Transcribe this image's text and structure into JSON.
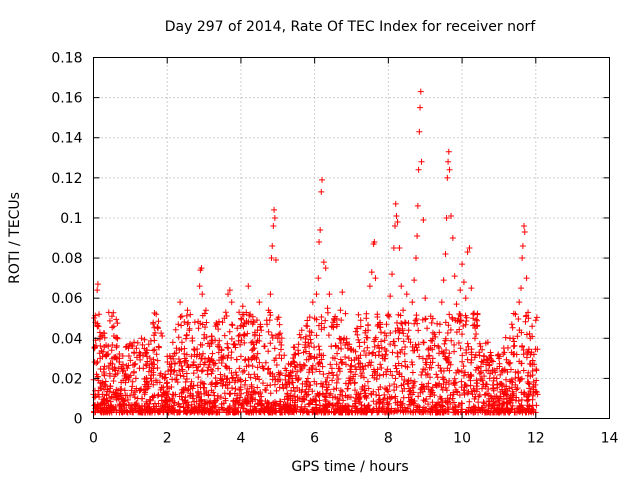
{
  "chart_data": {
    "type": "scatter",
    "title": "Day 297 of 2014, Rate Of TEC Index for receiver norf",
    "xlabel": "GPS time / hours",
    "ylabel": "ROTI / TECUs",
    "xlim": [
      0,
      14
    ],
    "ylim": [
      0,
      0.18
    ],
    "x_ticks": [
      "0",
      "2",
      "4",
      "6",
      "8",
      "10",
      "12",
      "14"
    ],
    "y_ticks": [
      "0",
      "0.02",
      "0.04",
      "0.06",
      "0.08",
      "0.1",
      "0.12",
      "0.14",
      "0.16",
      "0.18"
    ],
    "grid": true,
    "marker": "+",
    "marker_color": "#ff0000",
    "series": [
      {
        "name": "ROTI",
        "color": "#ff0000",
        "points": [
          [
            0.0,
            0.012
          ],
          [
            0.03,
            0.035
          ],
          [
            0.05,
            0.048
          ],
          [
            0.08,
            0.022
          ],
          [
            0.1,
            0.064
          ],
          [
            0.12,
            0.067
          ],
          [
            0.15,
            0.052
          ],
          [
            0.18,
            0.03
          ],
          [
            0.2,
            0.041
          ],
          [
            0.25,
            0.018
          ],
          [
            0.3,
            0.026
          ],
          [
            0.35,
            0.012
          ],
          [
            0.4,
            0.036
          ],
          [
            0.45,
            0.015
          ],
          [
            0.5,
            0.051
          ],
          [
            0.55,
            0.046
          ],
          [
            0.6,
            0.022
          ],
          [
            0.65,
            0.011
          ],
          [
            0.7,
            0.03
          ],
          [
            0.75,
            0.018
          ],
          [
            0.8,
            0.027
          ],
          [
            0.85,
            0.014
          ],
          [
            0.9,
            0.021
          ],
          [
            0.95,
            0.035
          ],
          [
            1.0,
            0.029
          ],
          [
            1.05,
            0.016
          ],
          [
            1.1,
            0.038
          ],
          [
            1.15,
            0.02
          ],
          [
            1.2,
            0.01
          ],
          [
            1.25,
            0.033
          ],
          [
            1.3,
            0.04
          ],
          [
            1.35,
            0.025
          ],
          [
            1.4,
            0.013
          ],
          [
            1.45,
            0.031
          ],
          [
            1.5,
            0.037
          ],
          [
            1.55,
            0.02
          ],
          [
            1.6,
            0.011
          ],
          [
            1.65,
            0.027
          ],
          [
            1.7,
            0.052
          ],
          [
            1.75,
            0.045
          ],
          [
            1.8,
            0.018
          ],
          [
            1.85,
            0.009
          ],
          [
            1.9,
            0.013
          ],
          [
            1.95,
            0.008
          ],
          [
            2.0,
            0.018
          ],
          [
            2.05,
            0.015
          ],
          [
            2.1,
            0.03
          ],
          [
            2.15,
            0.012
          ],
          [
            2.2,
            0.024
          ],
          [
            2.25,
            0.035
          ],
          [
            2.3,
            0.047
          ],
          [
            2.35,
            0.058
          ],
          [
            2.4,
            0.038
          ],
          [
            2.45,
            0.021
          ],
          [
            2.5,
            0.029
          ],
          [
            2.55,
            0.054
          ],
          [
            2.6,
            0.044
          ],
          [
            2.65,
            0.016
          ],
          [
            2.7,
            0.027
          ],
          [
            2.75,
            0.048
          ],
          [
            2.8,
            0.031
          ],
          [
            2.85,
            0.045
          ],
          [
            2.88,
            0.066
          ],
          [
            2.9,
            0.074
          ],
          [
            2.93,
            0.075
          ],
          [
            2.95,
            0.062
          ],
          [
            3.0,
            0.04
          ],
          [
            3.05,
            0.054
          ],
          [
            3.1,
            0.022
          ],
          [
            3.15,
            0.036
          ],
          [
            3.2,
            0.014
          ],
          [
            3.25,
            0.028
          ],
          [
            3.3,
            0.039
          ],
          [
            3.35,
            0.047
          ],
          [
            3.4,
            0.033
          ],
          [
            3.45,
            0.02
          ],
          [
            3.5,
            0.048
          ],
          [
            3.55,
            0.05
          ],
          [
            3.6,
            0.026
          ],
          [
            3.65,
            0.062
          ],
          [
            3.7,
            0.064
          ],
          [
            3.75,
            0.058
          ],
          [
            3.8,
            0.037
          ],
          [
            3.85,
            0.019
          ],
          [
            3.9,
            0.045
          ],
          [
            3.95,
            0.053
          ],
          [
            4.0,
            0.031
          ],
          [
            4.05,
            0.056
          ],
          [
            4.1,
            0.042
          ],
          [
            4.15,
            0.026
          ],
          [
            4.2,
            0.066
          ],
          [
            4.25,
            0.052
          ],
          [
            4.3,
            0.034
          ],
          [
            4.35,
            0.048
          ],
          [
            4.4,
            0.02
          ],
          [
            4.45,
            0.039
          ],
          [
            4.5,
            0.058
          ],
          [
            4.55,
            0.044
          ],
          [
            4.6,
            0.025
          ],
          [
            4.65,
            0.036
          ],
          [
            4.7,
            0.049
          ],
          [
            4.75,
            0.054
          ],
          [
            4.8,
            0.062
          ],
          [
            4.83,
            0.08
          ],
          [
            4.85,
            0.086
          ],
          [
            4.88,
            0.096
          ],
          [
            4.9,
            0.104
          ],
          [
            4.92,
            0.1
          ],
          [
            4.95,
            0.079
          ],
          [
            5.0,
            0.04
          ],
          [
            5.05,
            0.022
          ],
          [
            5.1,
            0.03
          ],
          [
            5.15,
            0.015
          ],
          [
            5.2,
            0.025
          ],
          [
            5.25,
            0.011
          ],
          [
            5.3,
            0.018
          ],
          [
            5.35,
            0.023
          ],
          [
            5.4,
            0.009
          ],
          [
            5.45,
            0.028
          ],
          [
            5.5,
            0.02
          ],
          [
            5.55,
            0.034
          ],
          [
            5.6,
            0.027
          ],
          [
            5.65,
            0.044
          ],
          [
            5.7,
            0.033
          ],
          [
            5.75,
            0.038
          ],
          [
            5.8,
            0.046
          ],
          [
            5.85,
            0.036
          ],
          [
            5.9,
            0.031
          ],
          [
            5.95,
            0.058
          ],
          [
            6.0,
            0.05
          ],
          [
            6.05,
            0.062
          ],
          [
            6.1,
            0.07
          ],
          [
            6.12,
            0.088
          ],
          [
            6.15,
            0.094
          ],
          [
            6.18,
            0.113
          ],
          [
            6.2,
            0.119
          ],
          [
            6.25,
            0.078
          ],
          [
            6.3,
            0.075
          ],
          [
            6.35,
            0.055
          ],
          [
            6.4,
            0.062
          ],
          [
            6.45,
            0.036
          ],
          [
            6.5,
            0.048
          ],
          [
            6.55,
            0.03
          ],
          [
            6.6,
            0.046
          ],
          [
            6.65,
            0.025
          ],
          [
            6.7,
            0.054
          ],
          [
            6.75,
            0.063
          ],
          [
            6.8,
            0.04
          ],
          [
            6.85,
            0.027
          ],
          [
            6.9,
            0.037
          ],
          [
            6.95,
            0.019
          ],
          [
            7.0,
            0.029
          ],
          [
            7.05,
            0.034
          ],
          [
            7.1,
            0.022
          ],
          [
            7.15,
            0.045
          ],
          [
            7.2,
            0.03
          ],
          [
            7.25,
            0.049
          ],
          [
            7.3,
            0.026
          ],
          [
            7.35,
            0.038
          ],
          [
            7.4,
            0.05
          ],
          [
            7.45,
            0.044
          ],
          [
            7.5,
            0.066
          ],
          [
            7.55,
            0.073
          ],
          [
            7.6,
            0.087
          ],
          [
            7.62,
            0.088
          ],
          [
            7.65,
            0.07
          ],
          [
            7.7,
            0.052
          ],
          [
            7.75,
            0.035
          ],
          [
            7.8,
            0.043
          ],
          [
            7.85,
            0.03
          ],
          [
            7.9,
            0.039
          ],
          [
            7.95,
            0.047
          ],
          [
            8.0,
            0.052
          ],
          [
            8.05,
            0.061
          ],
          [
            8.1,
            0.072
          ],
          [
            8.15,
            0.085
          ],
          [
            8.18,
            0.096
          ],
          [
            8.2,
            0.107
          ],
          [
            8.22,
            0.101
          ],
          [
            8.25,
            0.098
          ],
          [
            8.3,
            0.085
          ],
          [
            8.35,
            0.066
          ],
          [
            8.4,
            0.054
          ],
          [
            8.45,
            0.048
          ],
          [
            8.5,
            0.062
          ],
          [
            8.55,
            0.044
          ],
          [
            8.6,
            0.038
          ],
          [
            8.65,
            0.058
          ],
          [
            8.7,
            0.069
          ],
          [
            8.75,
            0.08
          ],
          [
            8.78,
            0.091
          ],
          [
            8.8,
            0.106
          ],
          [
            8.82,
            0.124
          ],
          [
            8.84,
            0.143
          ],
          [
            8.86,
            0.155
          ],
          [
            8.88,
            0.163
          ],
          [
            8.9,
            0.128
          ],
          [
            8.95,
            0.099
          ],
          [
            9.0,
            0.06
          ],
          [
            9.05,
            0.045
          ],
          [
            9.1,
            0.035
          ],
          [
            9.15,
            0.051
          ],
          [
            9.2,
            0.028
          ],
          [
            9.25,
            0.042
          ],
          [
            9.3,
            0.022
          ],
          [
            9.35,
            0.036
          ],
          [
            9.4,
            0.047
          ],
          [
            9.45,
            0.058
          ],
          [
            9.5,
            0.069
          ],
          [
            9.55,
            0.082
          ],
          [
            9.58,
            0.1
          ],
          [
            9.6,
            0.12
          ],
          [
            9.62,
            0.128
          ],
          [
            9.64,
            0.133
          ],
          [
            9.66,
            0.124
          ],
          [
            9.7,
            0.101
          ],
          [
            9.75,
            0.09
          ],
          [
            9.8,
            0.071
          ],
          [
            9.85,
            0.057
          ],
          [
            9.9,
            0.05
          ],
          [
            9.95,
            0.064
          ],
          [
            10.0,
            0.077
          ],
          [
            10.05,
            0.068
          ],
          [
            10.1,
            0.06
          ],
          [
            10.15,
            0.083
          ],
          [
            10.2,
            0.085
          ],
          [
            10.25,
            0.065
          ],
          [
            10.3,
            0.05
          ],
          [
            10.35,
            0.04
          ],
          [
            10.4,
            0.046
          ],
          [
            10.45,
            0.025
          ],
          [
            10.5,
            0.036
          ],
          [
            10.55,
            0.019
          ],
          [
            10.6,
            0.031
          ],
          [
            10.65,
            0.027
          ],
          [
            10.7,
            0.038
          ],
          [
            10.75,
            0.02
          ],
          [
            10.8,
            0.029
          ],
          [
            10.85,
            0.015
          ],
          [
            10.9,
            0.023
          ],
          [
            10.95,
            0.017
          ],
          [
            11.0,
            0.03
          ],
          [
            11.05,
            0.011
          ],
          [
            11.1,
            0.024
          ],
          [
            11.15,
            0.033
          ],
          [
            11.2,
            0.016
          ],
          [
            11.25,
            0.028
          ],
          [
            11.3,
            0.04
          ],
          [
            11.35,
            0.047
          ],
          [
            11.4,
            0.036
          ],
          [
            11.45,
            0.052
          ],
          [
            11.5,
            0.041
          ],
          [
            11.55,
            0.058
          ],
          [
            11.6,
            0.065
          ],
          [
            11.63,
            0.08
          ],
          [
            11.65,
            0.086
          ],
          [
            11.68,
            0.096
          ],
          [
            11.7,
            0.093
          ],
          [
            11.75,
            0.07
          ],
          [
            11.8,
            0.05
          ],
          [
            11.85,
            0.04
          ],
          [
            11.9,
            0.046
          ],
          [
            11.95,
            0.032
          ],
          [
            12.0,
            0.049
          ],
          [
            12.02,
            0.024
          ],
          [
            12.05,
            0.012
          ]
        ]
      }
    ]
  }
}
